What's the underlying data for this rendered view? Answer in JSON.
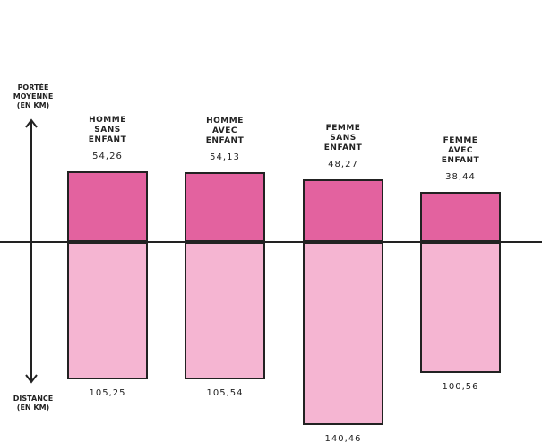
{
  "chart_data": {
    "type": "bar",
    "categories": [
      "HOMME\nSANS\nENFANT",
      "HOMME\nAVEC\nENFANT",
      "FEMME\nSANS\nENFANT",
      "FEMME\nAVEC\nENFANT"
    ],
    "series": [
      {
        "name": "PORTÉE\nMOYENNE\n(EN KM)",
        "color": "#e3629f",
        "direction": "up",
        "values": [
          54.26,
          54.13,
          48.27,
          38.44
        ],
        "value_labels": [
          "54,26",
          "54,13",
          "48,27",
          "38,44"
        ]
      },
      {
        "name": "DISTANCE\n(EN KM)",
        "color": "#f5b5d2",
        "direction": "down",
        "values": [
          105.25,
          105.54,
          140.46,
          100.56
        ],
        "value_labels": [
          "105,25",
          "105,54",
          "140,46",
          "100,56"
        ]
      }
    ]
  }
}
